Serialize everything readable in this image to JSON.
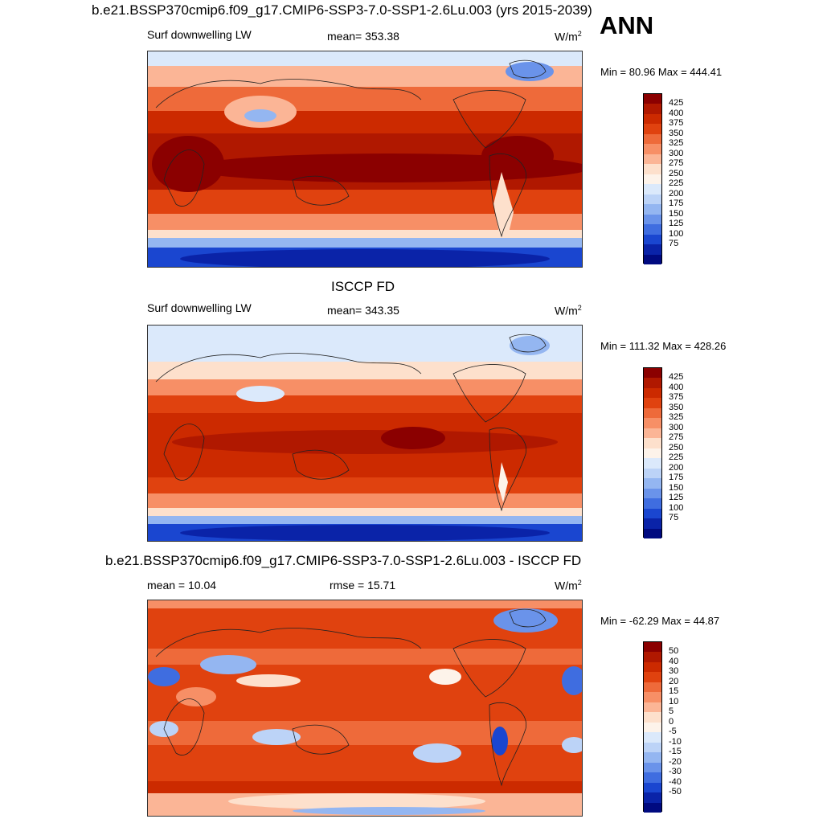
{
  "season": "ANN",
  "panels": [
    {
      "title": "b.e21.BSSP370cmip6.f09_g17.CMIP6-SSP3-7.0-SSP1-2.6Lu.003 (yrs 2015-2039)",
      "left_label": "Surf downwelling LW",
      "center_label": "mean= 353.38",
      "units": "W/m",
      "units_exp": "2",
      "minmax": "Min =  80.96 Max = 444.41",
      "kind": "abs"
    },
    {
      "title": "ISCCP FD",
      "left_label": "Surf downwelling LW",
      "center_label": "mean= 343.35",
      "units": "W/m",
      "units_exp": "2",
      "minmax": "Min = 111.32 Max = 428.26",
      "kind": "abs"
    },
    {
      "title": "b.e21.BSSP370cmip6.f09_g17.CMIP6-SSP3-7.0-SSP1-2.6Lu.003 - ISCCP FD",
      "left_label": "mean =  10.04",
      "center_label": "rmse =  15.71",
      "units": "W/m",
      "units_exp": "2",
      "minmax": "Min = -62.29 Max =  44.87",
      "kind": "diff"
    }
  ],
  "colorbar_abs": {
    "labels": [
      "425",
      "400",
      "375",
      "350",
      "325",
      "300",
      "275",
      "250",
      "225",
      "200",
      "175",
      "150",
      "125",
      "100",
      "75"
    ],
    "colors": [
      "#8b0000",
      "#b01800",
      "#cc2a00",
      "#e0420f",
      "#ee6a3a",
      "#f78f66",
      "#fbb596",
      "#fde0cc",
      "#fdf3ea",
      "#dbe9fb",
      "#bcd3f7",
      "#94b6f1",
      "#6a93ea",
      "#3f6de0",
      "#1a46d0",
      "#0a23a8",
      "#000a80"
    ]
  },
  "colorbar_diff": {
    "labels": [
      "50",
      "40",
      "30",
      "20",
      "15",
      "10",
      "5",
      "0",
      "-5",
      "-10",
      "-15",
      "-20",
      "-30",
      "-40",
      "-50"
    ],
    "colors": [
      "#8b0000",
      "#b01800",
      "#cc2a00",
      "#e0420f",
      "#ee6a3a",
      "#f78f66",
      "#fbb596",
      "#fde0cc",
      "#fdf3ea",
      "#dbe9fb",
      "#bcd3f7",
      "#94b6f1",
      "#6a93ea",
      "#3f6de0",
      "#1a46d0",
      "#0a23a8",
      "#000a80"
    ]
  }
}
